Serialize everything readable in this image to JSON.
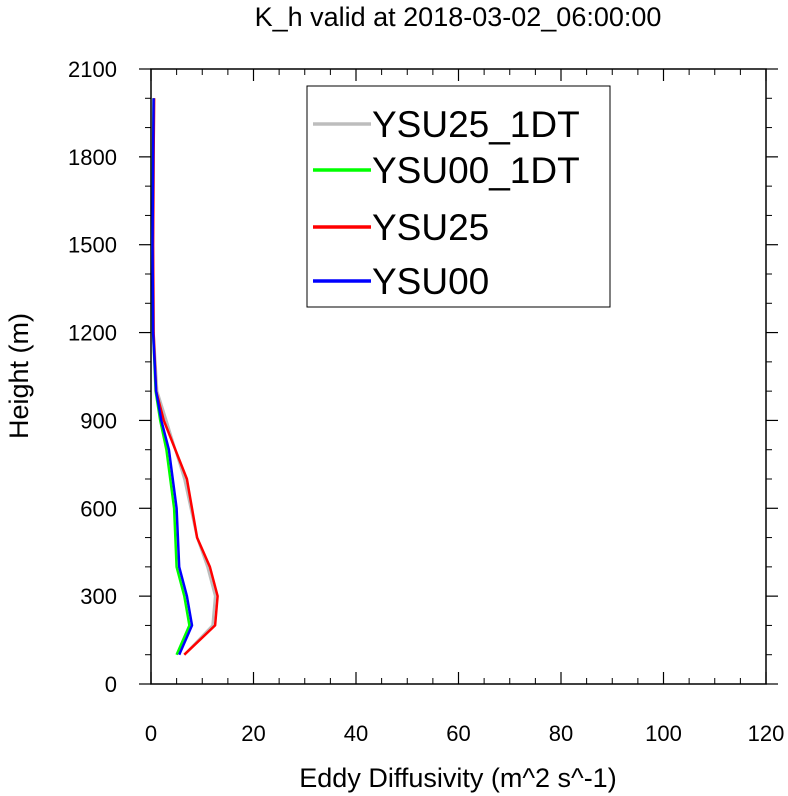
{
  "chart_data": {
    "type": "line",
    "title": "K_h valid at 2018-03-02_06:00:00",
    "xlabel": "Eddy Diffusivity (m^2 s^-1)",
    "ylabel": "Height (m)",
    "xlim": [
      0,
      120
    ],
    "ylim": [
      0,
      2100
    ],
    "xticks": [
      0,
      20,
      40,
      60,
      80,
      100,
      120
    ],
    "yticks": [
      0,
      300,
      600,
      900,
      1200,
      1500,
      1800,
      2100
    ],
    "legend_position": "top-center",
    "grid": false,
    "series": [
      {
        "name": "YSU25_1DT",
        "color": "#bdbdbd",
        "points": [
          [
            6.5,
            100
          ],
          [
            12,
            200
          ],
          [
            12.5,
            300
          ],
          [
            11,
            400
          ],
          [
            9,
            500
          ],
          [
            6.5,
            700
          ],
          [
            3,
            900
          ],
          [
            1.2,
            1000
          ],
          [
            0.5,
            1200
          ],
          [
            0.4,
            1500
          ],
          [
            0.5,
            1800
          ],
          [
            0.6,
            2000
          ]
        ]
      },
      {
        "name": "YSU00_1DT",
        "color": "#00ff00",
        "points": [
          [
            5,
            100
          ],
          [
            7.5,
            200
          ],
          [
            6.5,
            300
          ],
          [
            5,
            400
          ],
          [
            4.5,
            600
          ],
          [
            3,
            800
          ],
          [
            1.8,
            900
          ],
          [
            0.9,
            1000
          ],
          [
            0.4,
            1200
          ],
          [
            0.3,
            1500
          ],
          [
            0.4,
            1800
          ],
          [
            0.5,
            2000
          ]
        ]
      },
      {
        "name": "YSU25",
        "color": "#ff0000",
        "points": [
          [
            6.5,
            100
          ],
          [
            12.5,
            200
          ],
          [
            13,
            300
          ],
          [
            11.5,
            400
          ],
          [
            9,
            500
          ],
          [
            7,
            700
          ],
          [
            2.5,
            900
          ],
          [
            1,
            1000
          ],
          [
            0.5,
            1200
          ],
          [
            0.4,
            1500
          ],
          [
            0.5,
            1800
          ],
          [
            0.6,
            2000
          ]
        ]
      },
      {
        "name": "YSU00",
        "color": "#0000ff",
        "points": [
          [
            5.5,
            100
          ],
          [
            8,
            200
          ],
          [
            7,
            300
          ],
          [
            5.5,
            400
          ],
          [
            5,
            600
          ],
          [
            3.5,
            800
          ],
          [
            2,
            900
          ],
          [
            1,
            1000
          ],
          [
            0.4,
            1200
          ],
          [
            0.3,
            1500
          ],
          [
            0.4,
            1800
          ],
          [
            0.5,
            2000
          ]
        ]
      }
    ]
  }
}
